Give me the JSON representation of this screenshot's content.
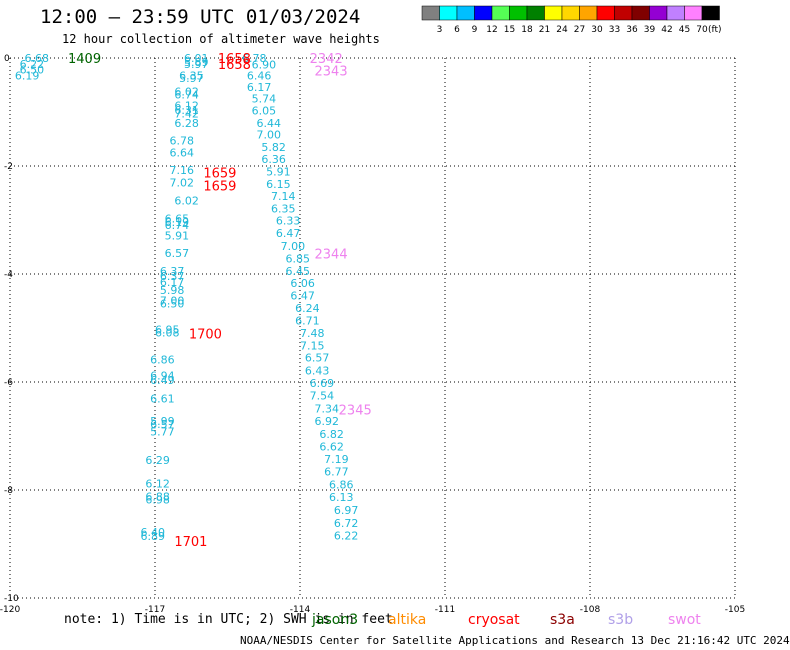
{
  "header": {
    "title": "12:00 — 23:59 UTC 01/03/2024",
    "subtitle": "12 hour collection of altimeter wave heights"
  },
  "footer": {
    "note": "note: 1) Time is in UTC; 2) SWH is in feet",
    "credit": "NOAA/NESDIS Center for Satellite Applications and Research   13 Dec 21:16:42 UTC 2024"
  },
  "satellites": [
    {
      "name": "jason3",
      "color": "#006400"
    },
    {
      "name": "altika",
      "color": "#ff8c00"
    },
    {
      "name": "cryosat",
      "color": "#ff0000"
    },
    {
      "name": "s3a",
      "color": "#8b0000"
    },
    {
      "name": "s3b",
      "color": "#b0a0e8"
    },
    {
      "name": "swot",
      "color": "#ee82ee"
    }
  ],
  "colorbar": {
    "unit": "(ft)",
    "colors": [
      "#808080",
      "#00ffff",
      "#00bfff",
      "#0000ff",
      "#55ff55",
      "#00c000",
      "#008000",
      "#ffff00",
      "#ffd700",
      "#ffa500",
      "#ff0000",
      "#c00000",
      "#800000",
      "#9400d3",
      "#c080ff",
      "#ff80ff",
      "#000000"
    ],
    "labels": [
      "3",
      "6",
      "9",
      "12",
      "15",
      "18",
      "21",
      "24",
      "27",
      "30",
      "33",
      "36",
      "39",
      "42",
      "45",
      "70"
    ]
  },
  "chart_data": {
    "type": "scatter",
    "title": "12:00 — 23:59 UTC 01/03/2024",
    "xlabel": "",
    "ylabel": "",
    "xlim": [
      -120,
      -105
    ],
    "ylim": [
      -10,
      0
    ],
    "xticks": [
      -120,
      -117,
      -114,
      -111,
      -108,
      -105
    ],
    "yticks": [
      0,
      -2,
      -4,
      -6,
      -8,
      -10
    ],
    "xtick_labels": [
      "-120",
      "-117",
      "-114",
      "-111",
      "-108",
      "-105"
    ],
    "ytick_labels": [
      "0",
      "-2",
      "-4",
      "-6",
      "-8",
      "-10"
    ],
    "grid": true,
    "point_color": "#20b8d8",
    "wave_heights": [
      {
        "lon": -119.7,
        "lat": 0.0,
        "swh": "6.68"
      },
      {
        "lon": -119.8,
        "lat": -0.11,
        "swh": "6.22"
      },
      {
        "lon": -119.8,
        "lat": -0.21,
        "swh": "6.50"
      },
      {
        "lon": -119.9,
        "lat": -0.32,
        "swh": "6.19"
      },
      {
        "lon": -116.4,
        "lat": 0.0,
        "swh": "6.01"
      },
      {
        "lon": -116.4,
        "lat": -0.07,
        "swh": "5.89"
      },
      {
        "lon": -116.4,
        "lat": -0.11,
        "swh": "5.97"
      },
      {
        "lon": -116.5,
        "lat": -0.32,
        "swh": "6.35"
      },
      {
        "lon": -116.5,
        "lat": -0.37,
        "swh": "5.97"
      },
      {
        "lon": -116.6,
        "lat": -0.62,
        "swh": "6.02"
      },
      {
        "lon": -116.6,
        "lat": -0.68,
        "swh": "6.74"
      },
      {
        "lon": -116.6,
        "lat": -0.88,
        "swh": "6.12"
      },
      {
        "lon": -116.6,
        "lat": -0.96,
        "swh": "6.31"
      },
      {
        "lon": -116.6,
        "lat": -1.03,
        "swh": "7.42"
      },
      {
        "lon": -116.6,
        "lat": -1.2,
        "swh": "6.28"
      },
      {
        "lon": -116.7,
        "lat": -1.53,
        "swh": "6.78"
      },
      {
        "lon": -116.7,
        "lat": -1.75,
        "swh": "6.64"
      },
      {
        "lon": -116.7,
        "lat": -2.07,
        "swh": "7.16"
      },
      {
        "lon": -116.7,
        "lat": -2.31,
        "swh": "7.02"
      },
      {
        "lon": -116.6,
        "lat": -2.64,
        "swh": "6.02"
      },
      {
        "lon": -116.8,
        "lat": -2.97,
        "swh": "6.65"
      },
      {
        "lon": -116.8,
        "lat": -3.04,
        "swh": "6.19"
      },
      {
        "lon": -116.8,
        "lat": -3.09,
        "swh": "6.74"
      },
      {
        "lon": -116.8,
        "lat": -3.29,
        "swh": "5.91"
      },
      {
        "lon": -116.8,
        "lat": -3.61,
        "swh": "6.57"
      },
      {
        "lon": -116.9,
        "lat": -3.94,
        "swh": "6.37"
      },
      {
        "lon": -116.9,
        "lat": -4.04,
        "swh": "6.37"
      },
      {
        "lon": -116.9,
        "lat": -4.15,
        "swh": "6.17"
      },
      {
        "lon": -116.9,
        "lat": -4.3,
        "swh": "5.98"
      },
      {
        "lon": -116.9,
        "lat": -4.49,
        "swh": "7.00"
      },
      {
        "lon": -116.9,
        "lat": -4.55,
        "swh": "6.50"
      },
      {
        "lon": -117.0,
        "lat": -5.03,
        "swh": "6.95"
      },
      {
        "lon": -117.0,
        "lat": -5.08,
        "swh": "6.08"
      },
      {
        "lon": -117.1,
        "lat": -5.58,
        "swh": "6.86"
      },
      {
        "lon": -117.1,
        "lat": -5.88,
        "swh": "6.94"
      },
      {
        "lon": -117.1,
        "lat": -5.96,
        "swh": "6.49"
      },
      {
        "lon": -117.1,
        "lat": -6.31,
        "swh": "6.61"
      },
      {
        "lon": -117.1,
        "lat": -6.72,
        "swh": "5.99"
      },
      {
        "lon": -117.1,
        "lat": -6.78,
        "swh": "6.57"
      },
      {
        "lon": -117.1,
        "lat": -6.92,
        "swh": "5.77"
      },
      {
        "lon": -117.2,
        "lat": -7.44,
        "swh": "6.29"
      },
      {
        "lon": -117.2,
        "lat": -7.88,
        "swh": "6.12"
      },
      {
        "lon": -117.2,
        "lat": -8.12,
        "swh": "6.88"
      },
      {
        "lon": -117.2,
        "lat": -8.18,
        "swh": "6.98"
      },
      {
        "lon": -117.3,
        "lat": -8.78,
        "swh": "6.40"
      },
      {
        "lon": -117.3,
        "lat": -8.85,
        "swh": "6.89"
      },
      {
        "lon": -115.2,
        "lat": 0.0,
        "swh": "6.78"
      },
      {
        "lon": -115.0,
        "lat": -0.12,
        "swh": "6.90"
      },
      {
        "lon": -115.1,
        "lat": -0.32,
        "swh": "6.46"
      },
      {
        "lon": -115.1,
        "lat": -0.54,
        "swh": "6.17"
      },
      {
        "lon": -115.0,
        "lat": -0.75,
        "swh": "5.74"
      },
      {
        "lon": -115.0,
        "lat": -0.97,
        "swh": "6.05"
      },
      {
        "lon": -114.9,
        "lat": -1.2,
        "swh": "6.44"
      },
      {
        "lon": -114.9,
        "lat": -1.42,
        "swh": "7.00"
      },
      {
        "lon": -114.8,
        "lat": -1.65,
        "swh": "5.82"
      },
      {
        "lon": -114.8,
        "lat": -1.87,
        "swh": "6.36"
      },
      {
        "lon": -114.7,
        "lat": -2.1,
        "swh": "5.91"
      },
      {
        "lon": -114.7,
        "lat": -2.33,
        "swh": "6.15"
      },
      {
        "lon": -114.6,
        "lat": -2.56,
        "swh": "7.14"
      },
      {
        "lon": -114.6,
        "lat": -2.79,
        "swh": "6.35"
      },
      {
        "lon": -114.5,
        "lat": -3.01,
        "swh": "6.33"
      },
      {
        "lon": -114.5,
        "lat": -3.24,
        "swh": "6.47"
      },
      {
        "lon": -114.4,
        "lat": -3.48,
        "swh": "7.00"
      },
      {
        "lon": -114.3,
        "lat": -3.71,
        "swh": "6.85"
      },
      {
        "lon": -114.3,
        "lat": -3.94,
        "swh": "6.45"
      },
      {
        "lon": -114.2,
        "lat": -4.17,
        "swh": "6.06"
      },
      {
        "lon": -114.2,
        "lat": -4.4,
        "swh": "6.47"
      },
      {
        "lon": -114.1,
        "lat": -4.63,
        "swh": "6.24"
      },
      {
        "lon": -114.1,
        "lat": -4.86,
        "swh": "6.71"
      },
      {
        "lon": -114.0,
        "lat": -5.09,
        "swh": "7.48"
      },
      {
        "lon": -114.0,
        "lat": -5.32,
        "swh": "7.15"
      },
      {
        "lon": -113.9,
        "lat": -5.55,
        "swh": "6.57"
      },
      {
        "lon": -113.9,
        "lat": -5.79,
        "swh": "6.43"
      },
      {
        "lon": -113.8,
        "lat": -6.02,
        "swh": "6.69"
      },
      {
        "lon": -113.8,
        "lat": -6.25,
        "swh": "7.54"
      },
      {
        "lon": -113.7,
        "lat": -6.49,
        "swh": "7.34"
      },
      {
        "lon": -113.7,
        "lat": -6.72,
        "swh": "6.92"
      },
      {
        "lon": -113.6,
        "lat": -6.96,
        "swh": "6.82"
      },
      {
        "lon": -113.6,
        "lat": -7.19,
        "swh": "6.62"
      },
      {
        "lon": -113.5,
        "lat": -7.43,
        "swh": "7.19"
      },
      {
        "lon": -113.5,
        "lat": -7.66,
        "swh": "6.77"
      },
      {
        "lon": -113.4,
        "lat": -7.9,
        "swh": "6.86"
      },
      {
        "lon": -113.4,
        "lat": -8.13,
        "swh": "6.13"
      },
      {
        "lon": -113.3,
        "lat": -8.37,
        "swh": "6.97"
      },
      {
        "lon": -113.3,
        "lat": -8.61,
        "swh": "6.72"
      },
      {
        "lon": -113.3,
        "lat": -8.84,
        "swh": "6.22"
      }
    ],
    "pass_times": [
      {
        "lon": -118.8,
        "lat": 0.0,
        "time": "1409",
        "satellite": "jason3"
      },
      {
        "lon": -115.7,
        "lat": 0.0,
        "time": "1658",
        "satellite": "cryosat"
      },
      {
        "lon": -115.7,
        "lat": -0.11,
        "time": "1658",
        "satellite": "cryosat"
      },
      {
        "lon": -113.8,
        "lat": 0.0,
        "time": "2342",
        "satellite": "swot"
      },
      {
        "lon": -113.7,
        "lat": -0.23,
        "time": "2343",
        "satellite": "swot"
      },
      {
        "lon": -116.0,
        "lat": -2.12,
        "time": "1659",
        "satellite": "cryosat"
      },
      {
        "lon": -116.0,
        "lat": -2.36,
        "time": "1659",
        "satellite": "cryosat"
      },
      {
        "lon": -113.7,
        "lat": -3.62,
        "time": "2344",
        "satellite": "swot"
      },
      {
        "lon": -116.3,
        "lat": -5.1,
        "time": "1700",
        "satellite": "cryosat"
      },
      {
        "lon": -113.2,
        "lat": -6.51,
        "time": "2345",
        "satellite": "swot"
      },
      {
        "lon": -116.6,
        "lat": -8.94,
        "time": "1701",
        "satellite": "cryosat"
      }
    ]
  }
}
